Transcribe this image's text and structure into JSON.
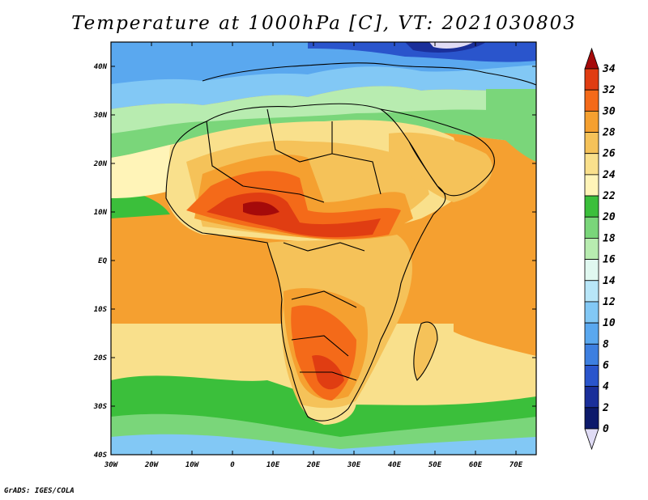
{
  "title": "Temperature at 1000hPa [C], VT: 2021030803",
  "credit": "GrADS: IGES/COLA",
  "map": {
    "lon_range": [
      -30,
      75
    ],
    "lat_range": [
      -40,
      45
    ],
    "lon_ticks": [
      "30W",
      "20W",
      "10W",
      "0",
      "10E",
      "20E",
      "30E",
      "40E",
      "50E",
      "60E",
      "70E"
    ],
    "lat_ticks": [
      "40N",
      "30N",
      "20N",
      "10N",
      "EQ",
      "10S",
      "20S",
      "30S",
      "40S"
    ]
  },
  "colorbar": {
    "labels": [
      "34",
      "32",
      "30",
      "28",
      "26",
      "24",
      "22",
      "20",
      "18",
      "16",
      "14",
      "12",
      "10",
      "8",
      "6",
      "4",
      "2",
      "0"
    ],
    "colors": [
      "#a50a0a",
      "#e03d12",
      "#f46a19",
      "#f5a030",
      "#f5c259",
      "#f9e08c",
      "#fff4b8",
      "#3bbf3b",
      "#7ad67a",
      "#b8ecb0",
      "#e0f8f0",
      "#b8e6f8",
      "#82c8f5",
      "#5aa8ef",
      "#3d7fe0",
      "#2a55cc",
      "#1a2f9a",
      "#0d1a6b",
      "#e0dcf5"
    ]
  }
}
